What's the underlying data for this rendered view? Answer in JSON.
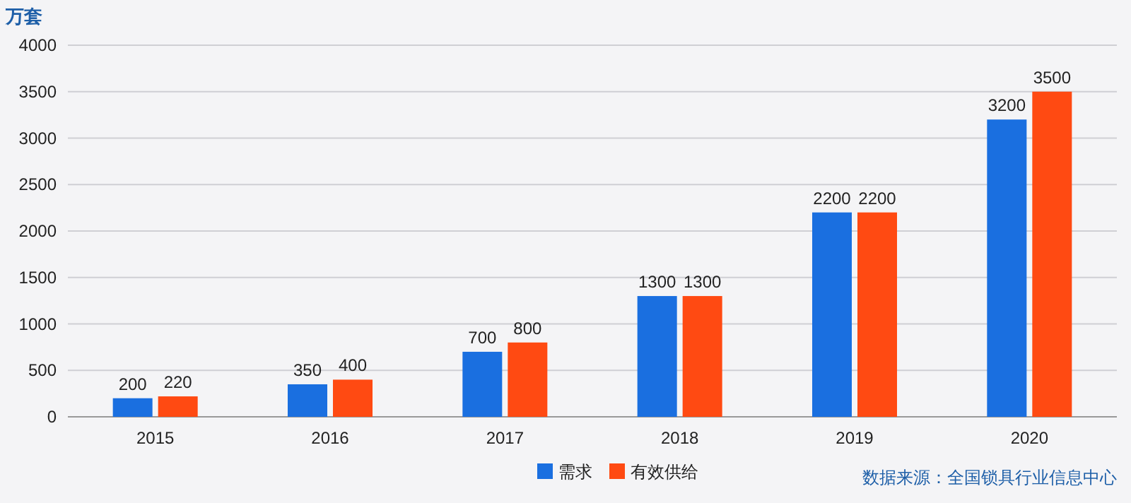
{
  "chart_data": {
    "type": "bar",
    "ylabel": "万套",
    "categories": [
      "2015",
      "2016",
      "2017",
      "2018",
      "2019",
      "2020"
    ],
    "series": [
      {
        "name": "需求",
        "color": "#1a6fe0",
        "values": [
          200,
          350,
          700,
          1300,
          2200,
          3200
        ]
      },
      {
        "name": "有效供给",
        "color": "#ff4a12",
        "values": [
          220,
          400,
          800,
          1300,
          2200,
          3500
        ]
      }
    ],
    "ylim": [
      0,
      4000
    ],
    "yticks": [
      0,
      500,
      1000,
      1500,
      2000,
      2500,
      3000,
      3500,
      4000
    ],
    "grid": "y",
    "legend": "bottom",
    "data_labels": true,
    "annotations": [
      "数据来源：全国锁具行业信息中心"
    ]
  }
}
